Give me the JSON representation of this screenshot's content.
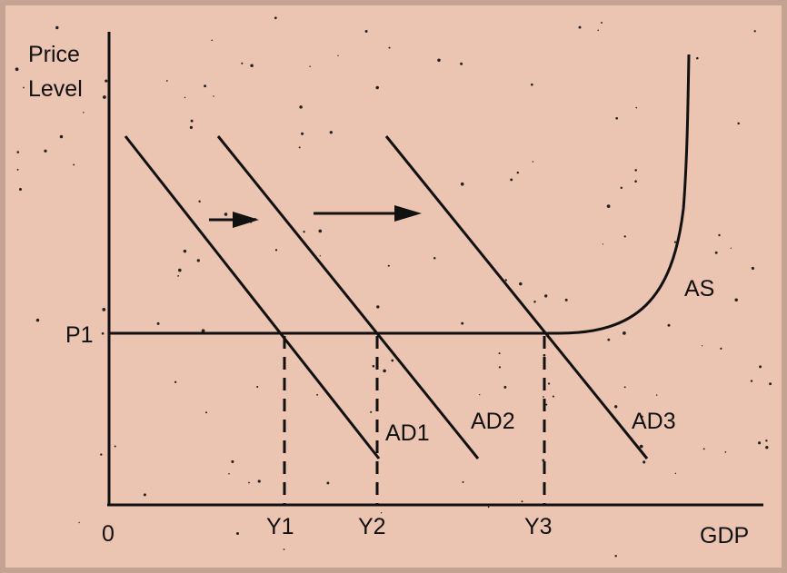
{
  "axes": {
    "y_label_line1": "Price",
    "y_label_line2": "Level",
    "x_label": "GDP",
    "origin": "0"
  },
  "price_level": "P1",
  "output_levels": [
    "Y1",
    "Y2",
    "Y3"
  ],
  "curves": {
    "ad1": "AD1",
    "ad2": "AD2",
    "ad3": "AD3",
    "as": "AS"
  },
  "colors": {
    "background": "#ecc4b2",
    "border": "#c4a393",
    "ink": "#111111"
  }
}
